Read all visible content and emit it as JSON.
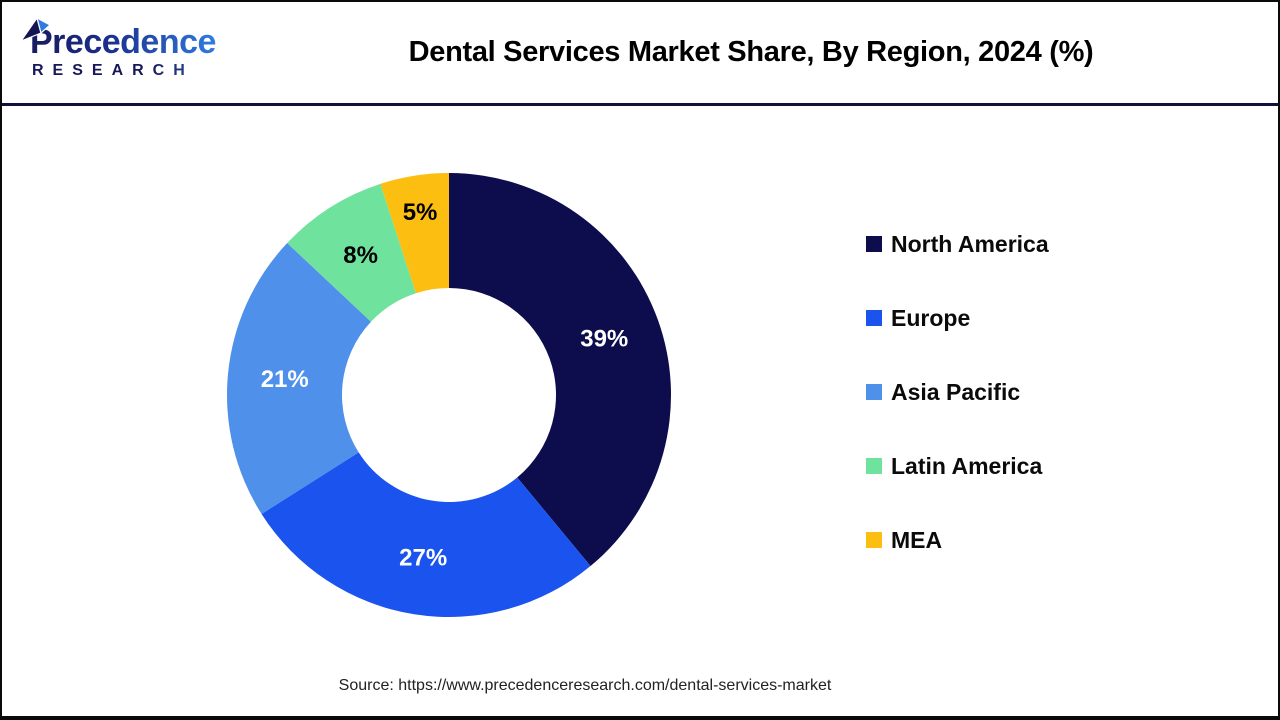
{
  "brand": {
    "wordmark": "Precedence",
    "subword": "RESEARCH",
    "color_dark": "#181858",
    "color_light": "#2f7ce0"
  },
  "header": {
    "title": "Dental Services Market Share, By Region, 2024 (%)"
  },
  "footer": {
    "source": "Source: https://www.precedenceresearch.com/dental-services-market"
  },
  "chart_data": {
    "type": "pie",
    "subtype": "donut",
    "title": "Dental Services Market Share, By Region, 2024 (%)",
    "unit": "%",
    "start_angle_deg": 0,
    "direction": "clockwise",
    "hole_ratio": 0.48,
    "legend_position": "right",
    "slices": [
      {
        "label": "North America",
        "value": 39,
        "display": "39%",
        "color": "#0d0d4d",
        "label_color": "#ffffff"
      },
      {
        "label": "Europe",
        "value": 27,
        "display": "27%",
        "color": "#1a53ee",
        "label_color": "#ffffff"
      },
      {
        "label": "Asia Pacific",
        "value": 21,
        "display": "21%",
        "color": "#4e90ea",
        "label_color": "#ffffff"
      },
      {
        "label": "Latin America",
        "value": 8,
        "display": "8%",
        "color": "#6fe39e",
        "label_color": "#000000"
      },
      {
        "label": "MEA",
        "value": 5,
        "display": "5%",
        "color": "#fcbe10",
        "label_color": "#000000"
      }
    ]
  }
}
